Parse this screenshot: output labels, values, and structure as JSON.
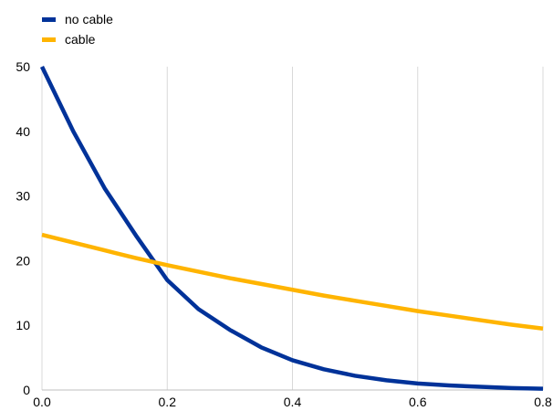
{
  "chart_data": {
    "type": "line",
    "title": "",
    "xlabel": "",
    "ylabel": "",
    "xlim": [
      0,
      0.8
    ],
    "ylim": [
      0,
      50
    ],
    "x_ticks": [
      "0.0",
      "0.2",
      "0.4",
      "0.6",
      "0.8"
    ],
    "y_ticks": [
      "0",
      "10",
      "20",
      "30",
      "40",
      "50"
    ],
    "grid": "vertical",
    "legend_position": "top-left",
    "x": [
      0.0,
      0.05,
      0.1,
      0.15,
      0.2,
      0.25,
      0.3,
      0.35,
      0.4,
      0.45,
      0.5,
      0.55,
      0.6,
      0.65,
      0.7,
      0.75,
      0.8
    ],
    "series": [
      {
        "name": "no cable",
        "color": "#003299",
        "values": [
          50.0,
          40.0,
          31.2,
          23.9,
          17.0,
          12.5,
          9.3,
          6.6,
          4.6,
          3.2,
          2.2,
          1.5,
          1.0,
          0.7,
          0.5,
          0.3,
          0.2
        ]
      },
      {
        "name": "cable",
        "color": "#FFB400",
        "values": [
          24.0,
          22.8,
          21.6,
          20.4,
          19.3,
          18.3,
          17.3,
          16.4,
          15.5,
          14.6,
          13.8,
          13.0,
          12.2,
          11.5,
          10.8,
          10.1,
          9.5
        ]
      }
    ]
  }
}
